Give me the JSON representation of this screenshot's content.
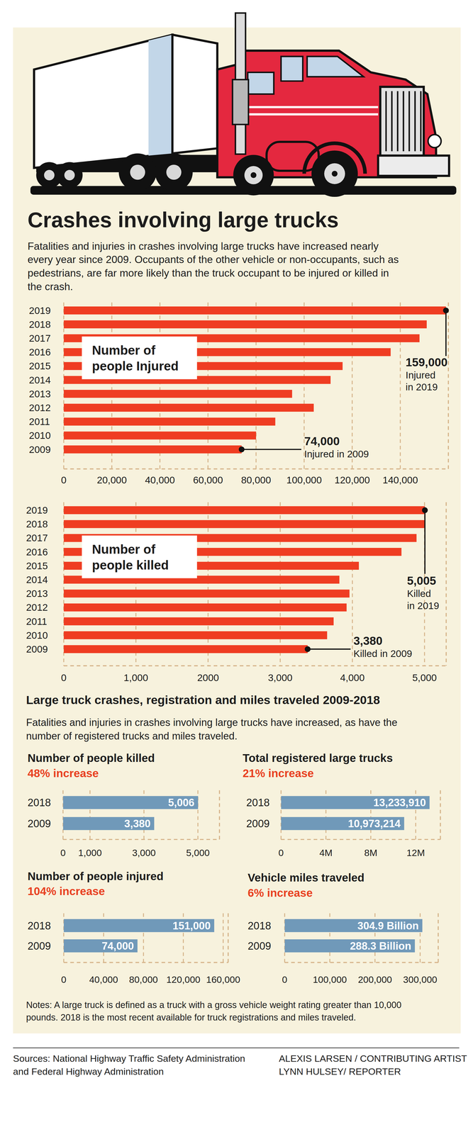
{
  "title": "Crashes involving large trucks",
  "subtitle": [
    "Fatalities and injuries in crashes involving large trucks have increased nearly",
    "every year since 2009.  Occupants of the other vehicle or non-occupants, such as",
    "pedestrians, are far more likely than the truck occupant to be injured or killed in",
    "the crash."
  ],
  "section_title": "Large truck crashes, registration and miles traveled 2009-2018",
  "section_subtitle": [
    "Fatalities and injuries in crashes involving large trucks have increased, as have the",
    "number of registered trucks and miles traveled."
  ],
  "notes": [
    "Notes: A large truck is defined as a truck with a gross vehicle weight rating greater than 10,000",
    "pounds. 2018 is the most recent available for truck registrations and miles traveled."
  ],
  "sources": [
    "Sources: National Highway Traffic Safety Administration",
    "and Federal Highway Administration"
  ],
  "credits": [
    "ALEXIS LARSEN / CONTRIBUTING ARTIST",
    "LYNN HULSEY/ REPORTER"
  ],
  "chart_data": [
    {
      "type": "bar",
      "orientation": "horizontal",
      "title": "Number of people Injured",
      "categories": [
        "2019",
        "2018",
        "2017",
        "2016",
        "2015",
        "2014",
        "2013",
        "2012",
        "2011",
        "2010",
        "2009"
      ],
      "values": [
        159000,
        151000,
        148000,
        136000,
        116000,
        111000,
        95000,
        104000,
        88000,
        80000,
        74000
      ],
      "color": "#ef3d22",
      "grid": true,
      "xlim": [
        0,
        160000
      ],
      "xticks": [
        0,
        {
          "value": 20000,
          "label": "20,000"
        },
        {
          "value": 40000,
          "label": "40,000"
        },
        {
          "value": 60000,
          "label": "60,000"
        },
        {
          "value": 80000,
          "label": "80,000"
        },
        {
          "value": 100000,
          "label": "100,000"
        },
        {
          "value": 120000,
          "label": "120,000"
        },
        {
          "value": 140000,
          "label": "140,000"
        }
      ],
      "annotations": [
        {
          "label": "159,000",
          "text": [
            "Injured",
            "in 2019"
          ]
        },
        {
          "label": "74,000",
          "text": [
            "Injured in 2009"
          ]
        }
      ]
    },
    {
      "type": "bar",
      "orientation": "horizontal",
      "title": "Number of people killed",
      "categories": [
        "2019",
        "2018",
        "2017",
        "2016",
        "2015",
        "2014",
        "2013",
        "2012",
        "2011",
        "2010",
        "2009"
      ],
      "values": [
        5005,
        5006,
        4889,
        4680,
        4090,
        3820,
        3960,
        3920,
        3740,
        3650,
        3380
      ],
      "color": "#ef3d22",
      "grid": true,
      "xlim": [
        0,
        5300
      ],
      "xticks": [
        0,
        {
          "value": 1000,
          "label": "1,000"
        },
        2000,
        {
          "value": 3000,
          "label": "3,000"
        },
        {
          "value": 4000,
          "label": "4,000"
        },
        {
          "value": 5000,
          "label": "5,000"
        }
      ],
      "annotations": [
        {
          "label": "5,005",
          "text": [
            "Killed",
            "in 2019"
          ]
        },
        {
          "label": "3,380",
          "text": [
            "Killed in 2009"
          ]
        }
      ]
    },
    {
      "type": "bar",
      "orientation": "horizontal",
      "title": "Number of people killed",
      "subtitle": "48% increase",
      "categories": [
        "2018",
        "2009"
      ],
      "values": [
        5006,
        3380
      ],
      "value_labels": [
        "5,006",
        "3,380"
      ],
      "data_labels": true,
      "color": "#7099b9",
      "grid": true,
      "xlim": [
        0,
        5800
      ],
      "xticks": [
        0,
        {
          "value": 1000,
          "label": "1,000"
        },
        {
          "value": 3000,
          "label": "3,000"
        },
        {
          "value": 5000,
          "label": "5,000"
        }
      ]
    },
    {
      "type": "bar",
      "orientation": "horizontal",
      "title": "Total registered large trucks",
      "subtitle": "21% increase",
      "categories": [
        "2018",
        "2009"
      ],
      "values": [
        13233910,
        10973214
      ],
      "value_labels": [
        "13,233,910",
        "10,973,214"
      ],
      "data_labels": true,
      "color": "#7099b9",
      "grid": true,
      "xlim": [
        0,
        14200000
      ],
      "xticks": [
        0,
        {
          "value": 4000000,
          "label": "4M"
        },
        {
          "value": 8000000,
          "label": "8M"
        },
        {
          "value": 12000000,
          "label": "12M"
        }
      ]
    },
    {
      "type": "bar",
      "orientation": "horizontal",
      "title": "Number of people injured",
      "subtitle": "104% increase",
      "categories": [
        "2018",
        "2009"
      ],
      "values": [
        151000,
        74000
      ],
      "value_labels": [
        "151,000",
        "74,000"
      ],
      "data_labels": true,
      "color": "#7099b9",
      "grid": true,
      "xlim": [
        0,
        165000
      ],
      "xticks": [
        0,
        {
          "value": 40000,
          "label": "40,000"
        },
        {
          "value": 80000,
          "label": "80,000"
        },
        {
          "value": 120000,
          "label": "120,000"
        },
        {
          "value": 160000,
          "label": "160,000"
        }
      ]
    },
    {
      "type": "bar",
      "orientation": "horizontal",
      "title": "Vehicle miles traveled",
      "subtitle": "6% increase",
      "categories": [
        "2018",
        "2009"
      ],
      "values": [
        304900,
        288300
      ],
      "value_labels": [
        "304.9 Billion",
        "288.3 Billion"
      ],
      "data_labels": true,
      "color": "#7099b9",
      "grid": true,
      "xlim": [
        0,
        340000
      ],
      "xticks": [
        0,
        {
          "value": 100000,
          "label": "100,000"
        },
        {
          "value": 200000,
          "label": "200,000"
        },
        {
          "value": 300000,
          "label": "300,000"
        }
      ]
    }
  ]
}
